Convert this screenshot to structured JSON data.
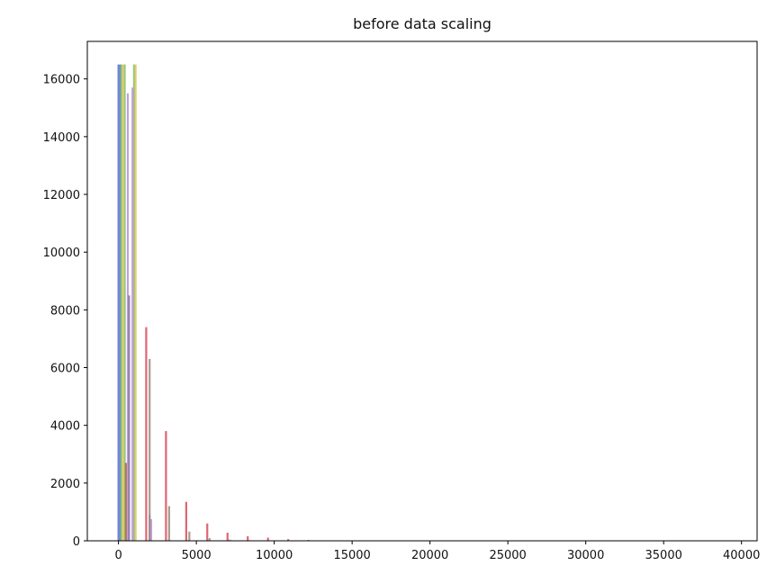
{
  "chart_data": {
    "type": "bar",
    "title": "before data scaling",
    "xlabel": "",
    "ylabel": "",
    "xlim": [
      -2000,
      41000
    ],
    "ylim": [
      0,
      17300
    ],
    "grid": false,
    "legend": "none",
    "x_ticks": [
      "0",
      "5000",
      "10000",
      "15000",
      "20000",
      "25000",
      "30000",
      "35000",
      "40000"
    ],
    "y_ticks": [
      "0",
      "2000",
      "4000",
      "6000",
      "8000",
      "10000",
      "12000",
      "14000",
      "16000"
    ],
    "series": [
      {
        "color": "#5a6fcf",
        "bars": [
          {
            "x": 0,
            "y": 16500
          },
          {
            "x": 120,
            "y": 16500
          }
        ]
      },
      {
        "color": "#7fbf6a",
        "bars": [
          {
            "x": 180,
            "y": 16500
          },
          {
            "x": 400,
            "y": 16500
          },
          {
            "x": 1000,
            "y": 16500
          }
        ]
      },
      {
        "color": "#d9c65a",
        "bars": [
          {
            "x": 300,
            "y": 16500
          },
          {
            "x": 1100,
            "y": 16500
          }
        ]
      },
      {
        "color": "#b98fd9",
        "bars": [
          {
            "x": 600,
            "y": 15500
          },
          {
            "x": 900,
            "y": 15700
          },
          {
            "x": 2000,
            "y": 900
          },
          {
            "x": 2100,
            "y": 750
          }
        ]
      },
      {
        "color": "#8a6fa8",
        "bars": [
          {
            "x": 680,
            "y": 8500
          }
        ]
      },
      {
        "color": "#b5653a",
        "bars": [
          {
            "x": 480,
            "y": 2700
          }
        ]
      },
      {
        "color": "#d94a5a",
        "bars": [
          {
            "x": 1780,
            "y": 7400
          },
          {
            "x": 3050,
            "y": 3800
          },
          {
            "x": 4350,
            "y": 1350
          },
          {
            "x": 5700,
            "y": 600
          },
          {
            "x": 7000,
            "y": 280
          },
          {
            "x": 8300,
            "y": 160
          },
          {
            "x": 9600,
            "y": 110
          },
          {
            "x": 10900,
            "y": 60
          },
          {
            "x": 12200,
            "y": 30
          },
          {
            "x": 13500,
            "y": 15
          },
          {
            "x": 14800,
            "y": 8
          },
          {
            "x": 16100,
            "y": 5
          }
        ]
      },
      {
        "color": "#9a8a7a",
        "bars": [
          {
            "x": 2000,
            "y": 6300
          },
          {
            "x": 3250,
            "y": 1200
          },
          {
            "x": 4550,
            "y": 320
          },
          {
            "x": 5850,
            "y": 90
          },
          {
            "x": 7150,
            "y": 40
          },
          {
            "x": 8450,
            "y": 20
          }
        ]
      }
    ]
  }
}
